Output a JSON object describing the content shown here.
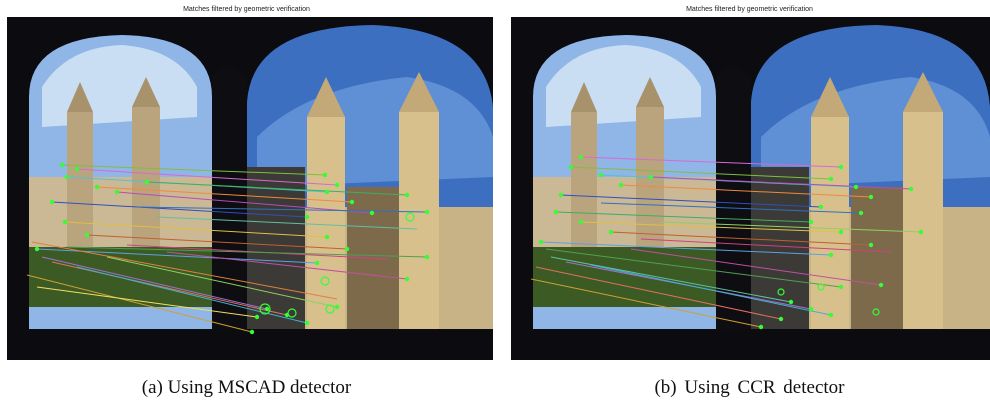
{
  "panels": [
    {
      "figure_title": "Matches filtered by geometric verification",
      "caption": "(a) Using MSCAD detector",
      "match_lines": [
        [
          "#7fbf3f",
          55,
          148,
          318,
          158
        ],
        [
          "#d46ad4",
          70,
          152,
          330,
          168
        ],
        [
          "#4fc3d6",
          60,
          160,
          320,
          175
        ],
        [
          "#f08a3c",
          90,
          170,
          345,
          185
        ],
        [
          "#2f4fbf",
          45,
          185,
          300,
          200
        ],
        [
          "#b84bb8",
          110,
          175,
          365,
          196
        ],
        [
          "#3fae5f",
          140,
          165,
          400,
          178
        ],
        [
          "#e0c040",
          58,
          205,
          320,
          220
        ],
        [
          "#c06030",
          80,
          218,
          340,
          232
        ],
        [
          "#5fa0e0",
          30,
          232,
          310,
          246
        ],
        [
          "#d04080",
          120,
          228,
          380,
          242
        ],
        [
          "#60c0a0",
          150,
          200,
          410,
          212
        ],
        [
          "#a070d0",
          35,
          240,
          260,
          292
        ],
        [
          "#e07060",
          45,
          245,
          280,
          298
        ],
        [
          "#40b0d0",
          70,
          250,
          300,
          306
        ],
        [
          "#d0a030",
          20,
          258,
          245,
          315
        ],
        [
          "#8fd060",
          100,
          240,
          330,
          290
        ],
        [
          "#c050a0",
          160,
          235,
          400,
          262
        ],
        [
          "#50a050",
          60,
          230,
          420,
          240
        ],
        [
          "#f0e060",
          30,
          270,
          250,
          300
        ],
        [
          "#3070c0",
          130,
          190,
          420,
          195
        ],
        [
          "#e08040",
          25,
          225,
          330,
          282
        ]
      ],
      "match_points": [
        [
          55,
          148
        ],
        [
          70,
          152
        ],
        [
          60,
          160
        ],
        [
          90,
          170
        ],
        [
          45,
          185
        ],
        [
          110,
          175
        ],
        [
          140,
          165
        ],
        [
          58,
          205
        ],
        [
          80,
          218
        ],
        [
          30,
          232
        ],
        [
          318,
          158
        ],
        [
          330,
          168
        ],
        [
          320,
          175
        ],
        [
          345,
          185
        ],
        [
          300,
          200
        ],
        [
          365,
          196
        ],
        [
          400,
          178
        ],
        [
          320,
          220
        ],
        [
          340,
          232
        ],
        [
          310,
          246
        ],
        [
          260,
          292
        ],
        [
          280,
          298
        ],
        [
          300,
          306
        ],
        [
          245,
          315
        ],
        [
          330,
          290
        ],
        [
          400,
          262
        ],
        [
          420,
          240
        ],
        [
          250,
          300
        ],
        [
          420,
          195
        ]
      ],
      "circles": [
        [
          258,
          292,
          5
        ],
        [
          318,
          264,
          4
        ],
        [
          323,
          292,
          4
        ],
        [
          285,
          296,
          4
        ],
        [
          403,
          200,
          4
        ]
      ]
    },
    {
      "figure_title": "Matches filtered by geometric verification",
      "caption": "(b)   Using CCR detector",
      "match_lines": [
        [
          "#d46ad4",
          70,
          140,
          330,
          150
        ],
        [
          "#7fbf3f",
          60,
          150,
          320,
          162
        ],
        [
          "#4fc3d6",
          90,
          158,
          345,
          170
        ],
        [
          "#f08a3c",
          110,
          168,
          360,
          180
        ],
        [
          "#2f4fbf",
          50,
          178,
          310,
          190
        ],
        [
          "#b84bb8",
          140,
          160,
          400,
          172
        ],
        [
          "#3fae5f",
          45,
          195,
          300,
          205
        ],
        [
          "#e0c040",
          70,
          205,
          330,
          215
        ],
        [
          "#c06030",
          100,
          215,
          360,
          228
        ],
        [
          "#5fa0e0",
          30,
          225,
          320,
          238
        ],
        [
          "#d04080",
          130,
          222,
          380,
          235
        ],
        [
          "#60c0a0",
          40,
          240,
          280,
          285
        ],
        [
          "#a070d0",
          55,
          245,
          300,
          292
        ],
        [
          "#e07060",
          25,
          250,
          270,
          302
        ],
        [
          "#40b0d0",
          80,
          248,
          320,
          298
        ],
        [
          "#d0a030",
          20,
          262,
          250,
          310
        ],
        [
          "#8fd060",
          150,
          205,
          410,
          215
        ],
        [
          "#c050a0",
          120,
          232,
          370,
          268
        ],
        [
          "#50a050",
          35,
          232,
          330,
          270
        ],
        [
          "#3070c0",
          90,
          186,
          350,
          196
        ]
      ],
      "match_points": [
        [
          70,
          140
        ],
        [
          60,
          150
        ],
        [
          90,
          158
        ],
        [
          110,
          168
        ],
        [
          50,
          178
        ],
        [
          140,
          160
        ],
        [
          45,
          195
        ],
        [
          70,
          205
        ],
        [
          100,
          215
        ],
        [
          30,
          225
        ],
        [
          330,
          150
        ],
        [
          320,
          162
        ],
        [
          345,
          170
        ],
        [
          360,
          180
        ],
        [
          310,
          190
        ],
        [
          400,
          172
        ],
        [
          300,
          205
        ],
        [
          330,
          215
        ],
        [
          360,
          228
        ],
        [
          320,
          238
        ],
        [
          280,
          285
        ],
        [
          300,
          292
        ],
        [
          270,
          302
        ],
        [
          320,
          298
        ],
        [
          250,
          310
        ],
        [
          410,
          215
        ],
        [
          370,
          268
        ],
        [
          330,
          270
        ],
        [
          350,
          196
        ]
      ],
      "circles": [
        [
          270,
          275,
          3
        ],
        [
          310,
          270,
          3
        ],
        [
          365,
          295,
          3
        ]
      ]
    }
  ]
}
